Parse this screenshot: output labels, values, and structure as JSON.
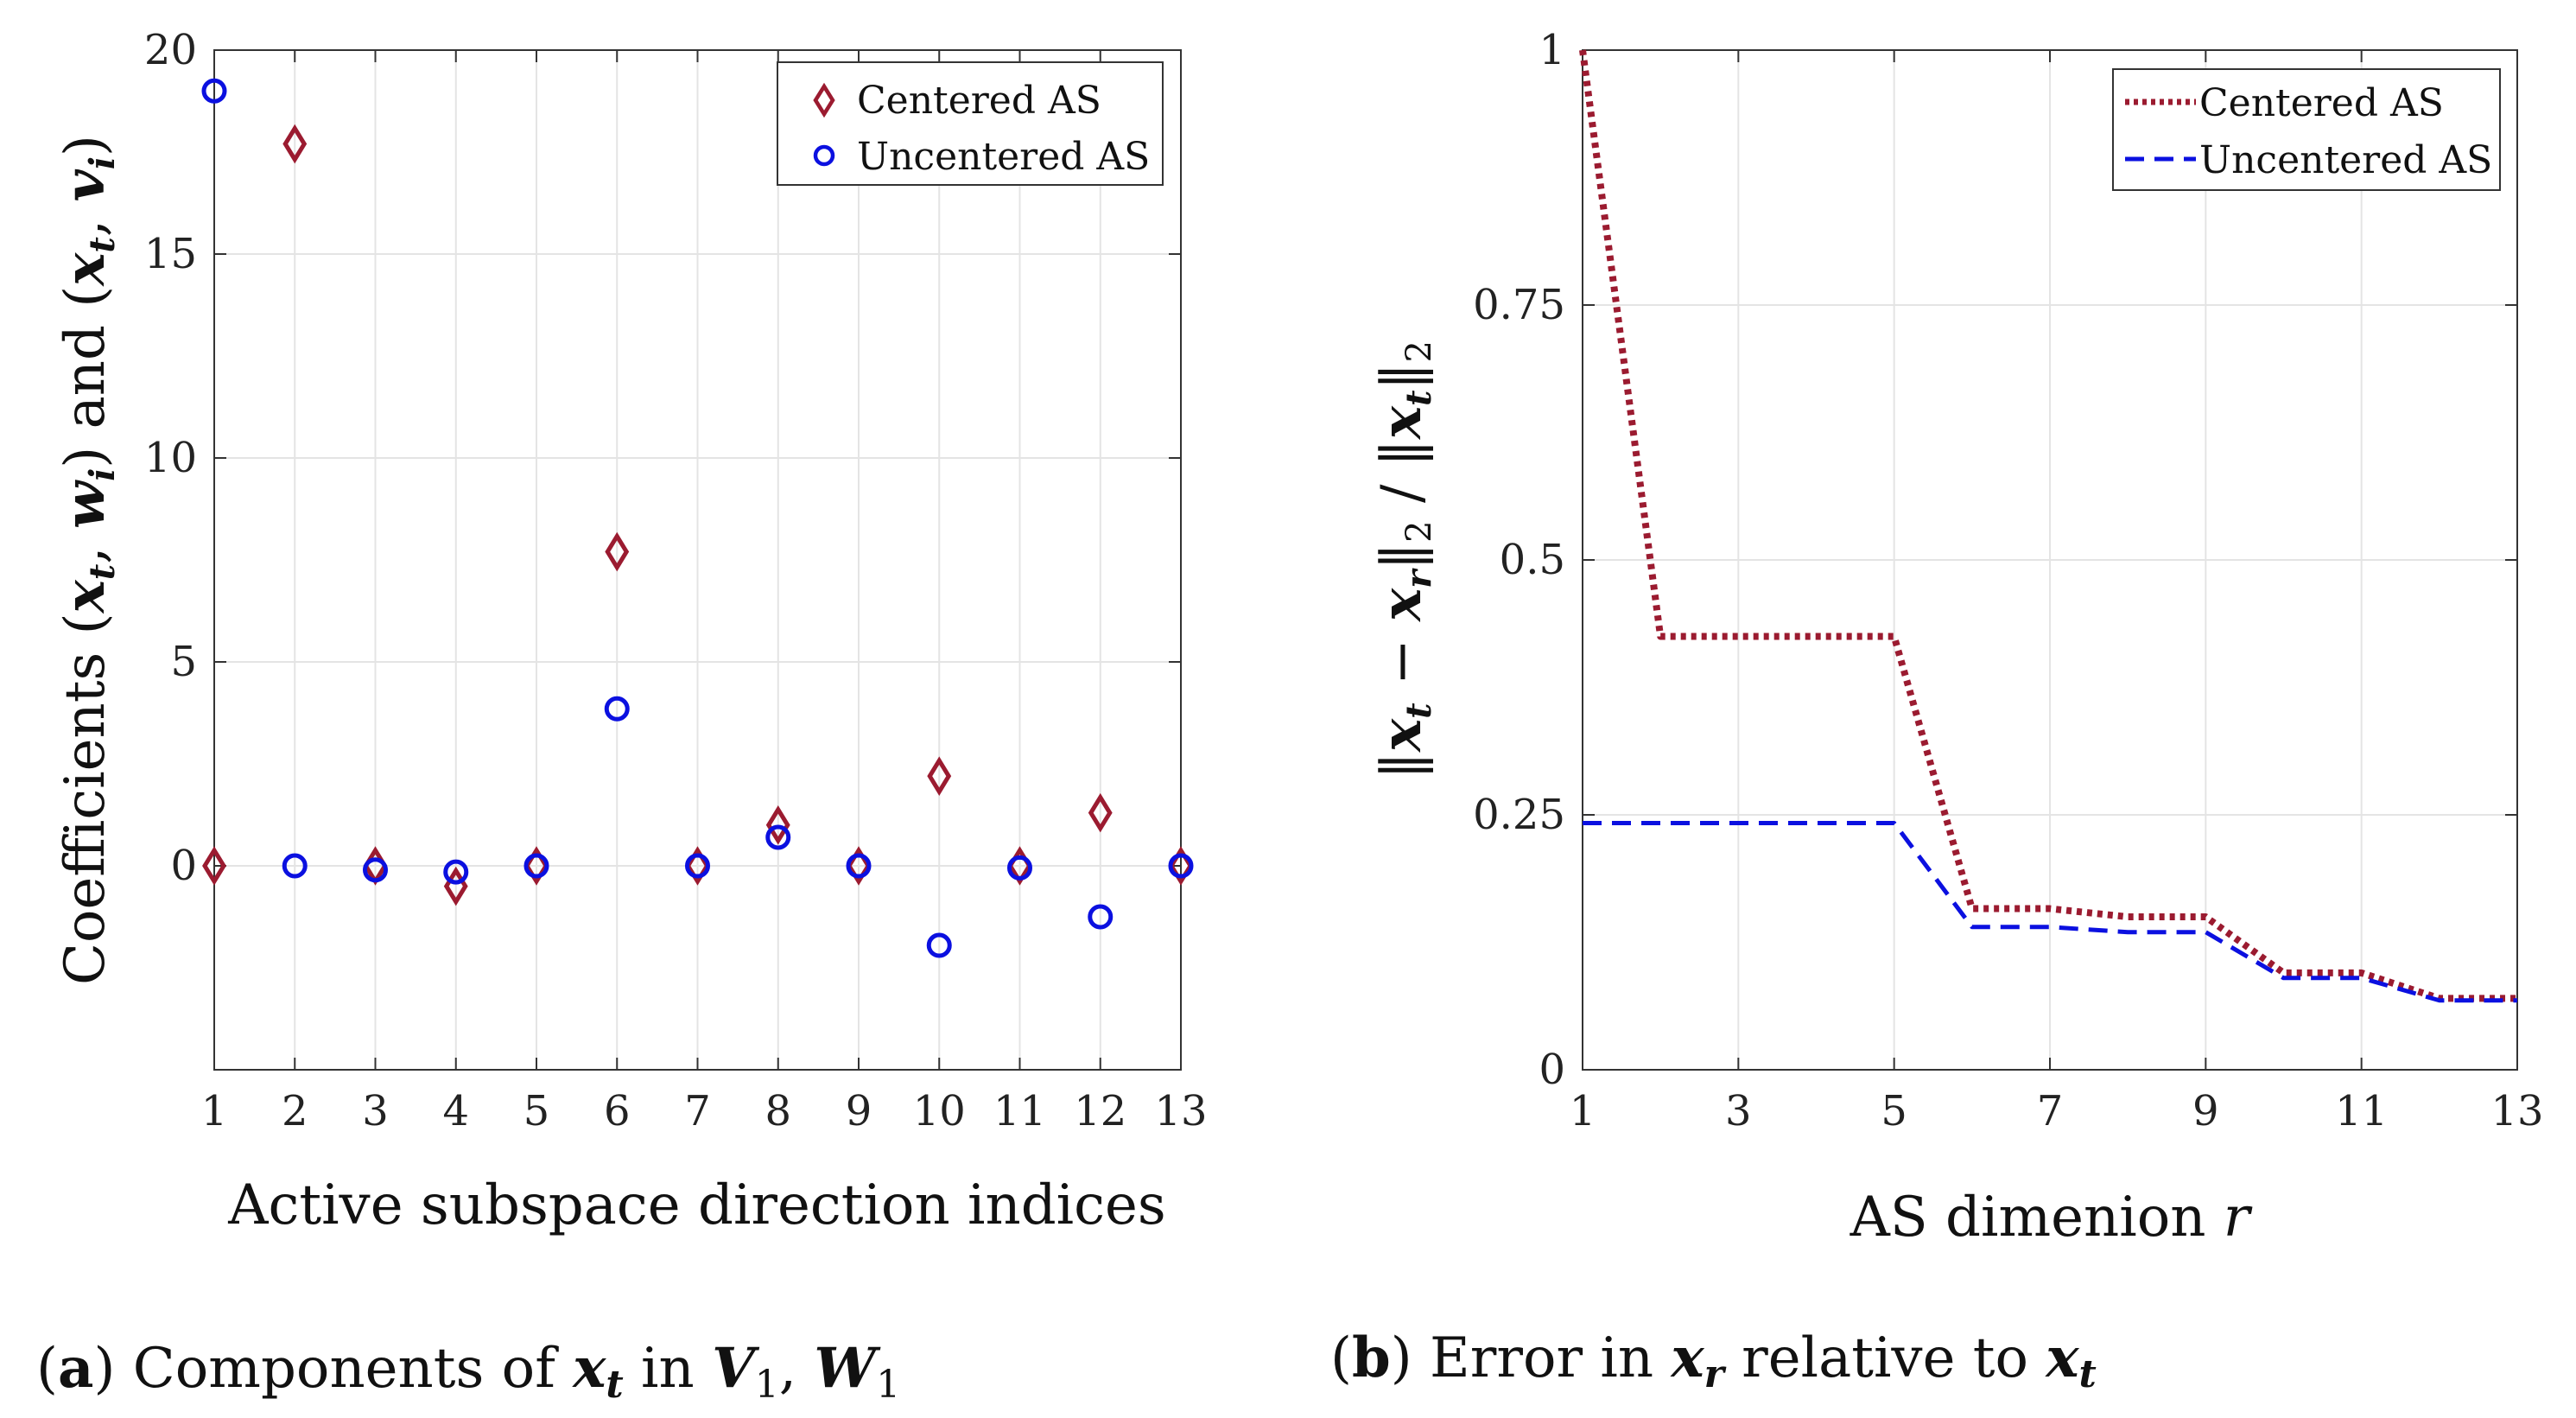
{
  "chart_data": [
    {
      "type": "scatter",
      "xlabel": "Active subspace direction indices",
      "ylabel": "Coefficients (x_t, w_i) and (x_t, v_i)",
      "xlim": [
        1,
        13
      ],
      "ylim": [
        -5,
        20
      ],
      "xticks": [
        1,
        2,
        3,
        4,
        5,
        6,
        7,
        8,
        9,
        10,
        11,
        12,
        13
      ],
      "yticks": [
        0,
        5,
        10,
        15,
        20
      ],
      "grid": true,
      "legend_position": "top-right",
      "series": [
        {
          "name": "Centered AS",
          "marker": "diamond",
          "color": "#9b1b30",
          "x": [
            1,
            2,
            3,
            4,
            5,
            6,
            7,
            8,
            9,
            10,
            11,
            12,
            13
          ],
          "y": [
            0,
            17.7,
            0,
            -0.5,
            0,
            7.7,
            0,
            1.0,
            0,
            2.2,
            0,
            1.3,
            0
          ]
        },
        {
          "name": "Uncentered AS",
          "marker": "circle",
          "color": "#0b10e0",
          "x": [
            1,
            2,
            3,
            4,
            5,
            6,
            7,
            8,
            9,
            10,
            11,
            12,
            13
          ],
          "y": [
            19.0,
            0,
            -0.1,
            -0.15,
            0,
            3.85,
            0,
            0.7,
            0,
            -1.95,
            -0.05,
            -1.25,
            0
          ]
        }
      ],
      "caption": {
        "label": "(a)",
        "text_parts": [
          "Components of ",
          "x",
          "t",
          " in ",
          "V",
          "1",
          ", ",
          "W",
          "1"
        ]
      }
    },
    {
      "type": "line",
      "xlabel": "AS dimenion r",
      "ylabel": "||x_t − x_r||_2 / ||x_t||_2",
      "xlim": [
        1,
        13
      ],
      "ylim": [
        0,
        1
      ],
      "xticks": [
        1,
        3,
        5,
        7,
        9,
        11,
        13
      ],
      "yticks": [
        0,
        0.25,
        0.5,
        0.75,
        1
      ],
      "ytick_labels": [
        "0",
        "0.25",
        "0.5",
        "0.75",
        "1"
      ],
      "grid": true,
      "legend_position": "top-right",
      "series": [
        {
          "name": "Centered AS",
          "linestyle": "dotted",
          "color": "#9b1b30",
          "x": [
            1,
            2,
            3,
            4,
            5,
            6,
            7,
            8,
            9,
            10,
            11,
            12,
            13
          ],
          "y": [
            1.0,
            0.425,
            0.425,
            0.425,
            0.425,
            0.158,
            0.158,
            0.15,
            0.15,
            0.095,
            0.095,
            0.07,
            0.07
          ]
        },
        {
          "name": "Uncentered AS",
          "linestyle": "dashed",
          "color": "#0b10e0",
          "x": [
            1,
            2,
            3,
            4,
            5,
            6,
            7,
            8,
            9,
            10,
            11,
            12,
            13
          ],
          "y": [
            0.242,
            0.242,
            0.242,
            0.242,
            0.242,
            0.14,
            0.14,
            0.135,
            0.135,
            0.09,
            0.09,
            0.068,
            0.068
          ]
        }
      ],
      "caption": {
        "label": "(b)",
        "text_parts": [
          "Error in ",
          "x",
          "r",
          " relative to ",
          "x",
          "t"
        ]
      }
    }
  ]
}
